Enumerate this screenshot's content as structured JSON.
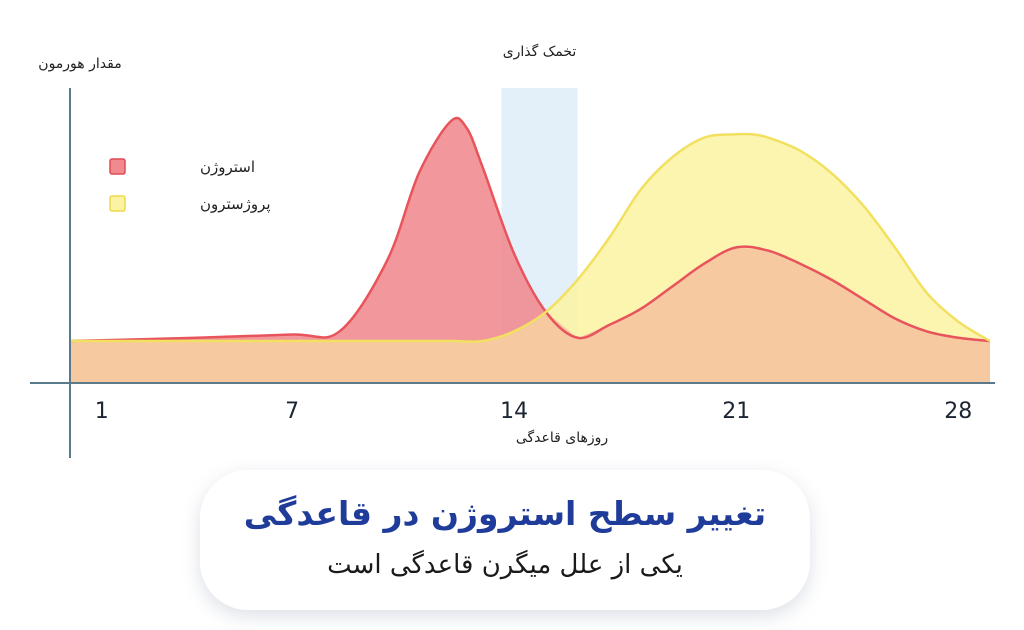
{
  "chart_data": {
    "type": "area",
    "title": "تخمک گذاری",
    "xlabel": "روزهای قاعدگی",
    "ylabel": "مقدار هورمون",
    "x_ticks": [
      1,
      7,
      14,
      21,
      28
    ],
    "xlim": [
      0,
      29
    ],
    "ylim": [
      0,
      100
    ],
    "grid": false,
    "legend_position": "top-left",
    "highlight_band": {
      "label": "تخمک گذاری",
      "x_range": [
        13.6,
        16
      ]
    },
    "series": [
      {
        "name": "استروژن",
        "color": "#f08a8f",
        "x": [
          0,
          4,
          7,
          8.5,
          10,
          11,
          12,
          12.5,
          13,
          14,
          15,
          16,
          17,
          18,
          19,
          20,
          21,
          22,
          23,
          24,
          25,
          26,
          27,
          28,
          29
        ],
        "y": [
          13,
          14,
          15,
          16,
          38,
          65,
          81,
          79,
          67,
          40,
          22,
          14,
          18,
          23,
          30,
          37,
          42,
          41,
          37,
          32,
          26,
          20,
          16,
          14,
          13
        ]
      },
      {
        "name": "پروژسترون",
        "color": "#fbf3a2",
        "x": [
          0,
          10,
          12,
          13,
          14,
          15,
          16,
          17,
          18,
          19,
          20,
          21,
          21.5,
          22,
          23,
          24,
          25,
          26,
          27,
          28,
          29
        ],
        "y": [
          13,
          13,
          13,
          13,
          16,
          22,
          32,
          45,
          60,
          70,
          76,
          77,
          77,
          76,
          72,
          65,
          55,
          42,
          28,
          19,
          13
        ]
      }
    ]
  },
  "caption": {
    "title": "تغییر سطح استروژن در قاعدگی",
    "subtitle": "یکی از علل میگرن قاعدگی است"
  },
  "colors": {
    "axis": "#5a7a8c",
    "band": "#d9eaf7",
    "overlap": "#f6c9a0",
    "caption_title": "#1f3c9a"
  }
}
